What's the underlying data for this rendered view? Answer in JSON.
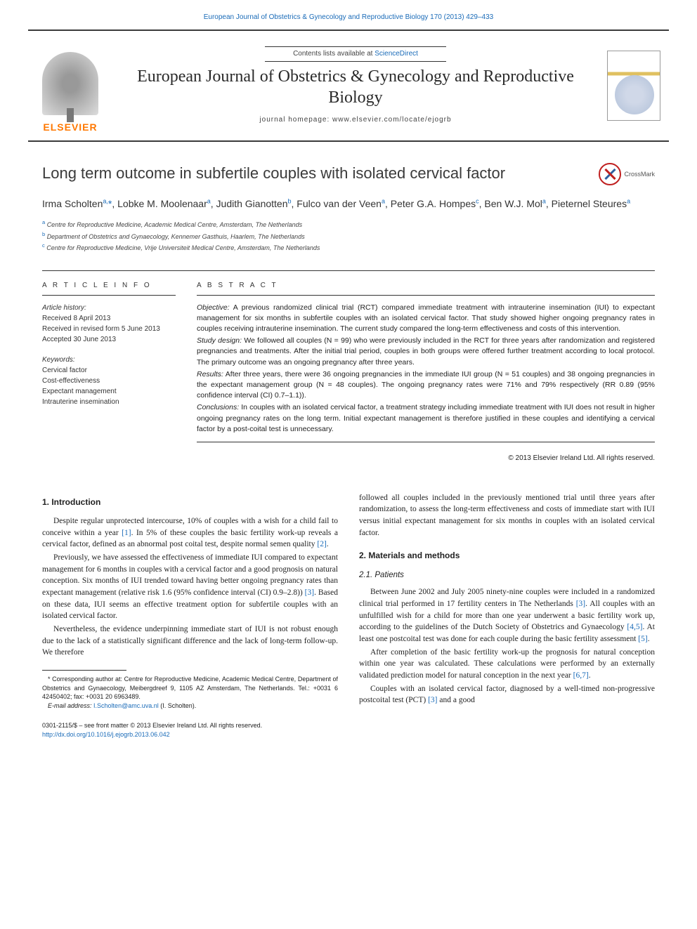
{
  "top_link": "European Journal of Obstetrics & Gynecology and Reproductive Biology 170 (2013) 429–433",
  "masthead": {
    "contents_pre": "Contents lists available at ",
    "contents_link": "ScienceDirect",
    "journal_title": "European Journal of Obstetrics & Gynecology and Reproductive Biology",
    "homepage_label": "journal homepage: www.elsevier.com/locate/ejogrb",
    "publisher": "ELSEVIER"
  },
  "crossmark_label": "CrossMark",
  "article_title": "Long term outcome in subfertile couples with isolated cervical factor",
  "authors_html": "Irma Scholten<sup>a,</sup><span class='star'>*</span>, Lobke M. Moolenaar<sup>a</sup>, Judith Gianotten<sup>b</sup>, Fulco van der Veen<sup>a</sup>, Peter G.A. Hompes<sup>c</sup>, Ben W.J. Mol<sup>a</sup>, Pieternel Steures<sup>a</sup>",
  "affiliations": [
    {
      "sup": "a",
      "text": "Centre for Reproductive Medicine, Academic Medical Centre, Amsterdam, The Netherlands"
    },
    {
      "sup": "b",
      "text": "Department of Obstetrics and Gynaecology, Kennemer Gasthuis, Haarlem, The Netherlands"
    },
    {
      "sup": "c",
      "text": "Centre for Reproductive Medicine, Vrije Universiteit Medical Centre, Amsterdam, The Netherlands"
    }
  ],
  "info": {
    "head": "A R T I C L E   I N F O",
    "history_label": "Article history:",
    "history": [
      "Received 8 April 2013",
      "Received in revised form 5 June 2013",
      "Accepted 30 June 2013"
    ],
    "keywords_label": "Keywords:",
    "keywords": [
      "Cervical factor",
      "Cost-effectiveness",
      "Expectant management",
      "Intrauterine insemination"
    ]
  },
  "abstract": {
    "head": "A B S T R A C T",
    "objective_label": "Objective:",
    "objective": "A previous randomized clinical trial (RCT) compared immediate treatment with intrauterine insemination (IUI) to expectant management for six months in subfertile couples with an isolated cervical factor. That study showed higher ongoing pregnancy rates in couples receiving intrauterine insemination. The current study compared the long-term effectiveness and costs of this intervention.",
    "design_label": "Study design:",
    "design": "We followed all couples (N = 99) who were previously included in the RCT for three years after randomization and registered pregnancies and treatments. After the initial trial period, couples in both groups were offered further treatment according to local protocol. The primary outcome was an ongoing pregnancy after three years.",
    "results_label": "Results:",
    "results": "After three years, there were 36 ongoing pregnancies in the immediate IUI group (N = 51 couples) and 38 ongoing pregnancies in the expectant management group (N = 48 couples). The ongoing pregnancy rates were 71% and 79% respectively (RR 0.89 (95% confidence interval (CI) 0.7–1.1)).",
    "conclusions_label": "Conclusions:",
    "conclusions": "In couples with an isolated cervical factor, a treatment strategy including immediate treatment with IUI does not result in higher ongoing pregnancy rates on the long term. Initial expectant management is therefore justified in these couples and identifying a cervical factor by a post-coital test is unnecessary.",
    "copyright": "© 2013 Elsevier Ireland Ltd. All rights reserved."
  },
  "body": {
    "sec1_head": "1. Introduction",
    "p1a": "Despite regular unprotected intercourse, 10% of couples with a wish for a child fail to conceive within a year ",
    "p1_ref1": "[1]",
    "p1b": ". In 5% of these couples the basic fertility work-up reveals a cervical factor, defined as an abnormal post coital test, despite normal semen quality ",
    "p1_ref2": "[2]",
    "p1c": ".",
    "p2a": "Previously, we have assessed the effectiveness of immediate IUI compared to expectant management for 6 months in couples with a cervical factor and a good prognosis on natural conception. Six months of IUI trended toward having better ongoing pregnancy rates than expectant management (relative risk 1.6 (95% confidence interval (CI) 0.9–2.8)) ",
    "p2_ref": "[3]",
    "p2b": ". Based on these data, IUI seems an effective treatment option for subfertile couples with an isolated cervical factor.",
    "p3": "Nevertheless, the evidence underpinning immediate start of IUI is not robust enough due to the lack of a statistically significant difference and the lack of long-term follow-up. We therefore",
    "p3_cont": "followed all couples included in the previously mentioned trial until three years after randomization, to assess the long-term effectiveness and costs of immediate start with IUI versus initial expectant management for six months in couples with an isolated cervical factor.",
    "sec2_head": "2. Materials and methods",
    "sec21_head": "2.1. Patients",
    "p4a": "Between June 2002 and July 2005 ninety-nine couples were included in a randomized clinical trial performed in 17 fertility centers in The Netherlands ",
    "p4_ref1": "[3]",
    "p4b": ". All couples with an unfulfilled wish for a child for more than one year underwent a basic fertility work up, according to the guidelines of the Dutch Society of Obstetrics and Gynaecology ",
    "p4_ref2": "[4,5]",
    "p4c": ". At least one postcoital test was done for each couple during the basic fertility assessment ",
    "p4_ref3": "[5]",
    "p4d": ".",
    "p5a": "After completion of the basic fertility work-up the prognosis for natural conception within one year was calculated. These calculations were performed by an externally validated prediction model for natural conception in the next year ",
    "p5_ref": "[6,7]",
    "p5b": ".",
    "p6a": "Couples with an isolated cervical factor, diagnosed by a well-timed non-progressive postcoital test (PCT) ",
    "p6_ref": "[3]",
    "p6b": " and a good"
  },
  "footnote": {
    "corr_label": "* Corresponding author at:",
    "corr_text": "Centre for Reproductive Medicine, Academic Medical Centre, Department of Obstetrics and Gynaecology, Meibergdreef 9, 1105 AZ Amsterdam, The Netherlands. Tel.: +0031 6 42450402; fax: +0031 20 6963489.",
    "email_label": "E-mail address:",
    "email": "I.Scholten@amc.uva.nl",
    "email_name": "(I. Scholten)."
  },
  "bottom": {
    "line1": "0301-2115/$ – see front matter © 2013 Elsevier Ireland Ltd. All rights reserved.",
    "doi": "http://dx.doi.org/10.1016/j.ejogrb.2013.06.042"
  },
  "colors": {
    "link": "#1a6bb8",
    "text": "#222222",
    "orange": "#ff7800",
    "rule": "#333333"
  }
}
